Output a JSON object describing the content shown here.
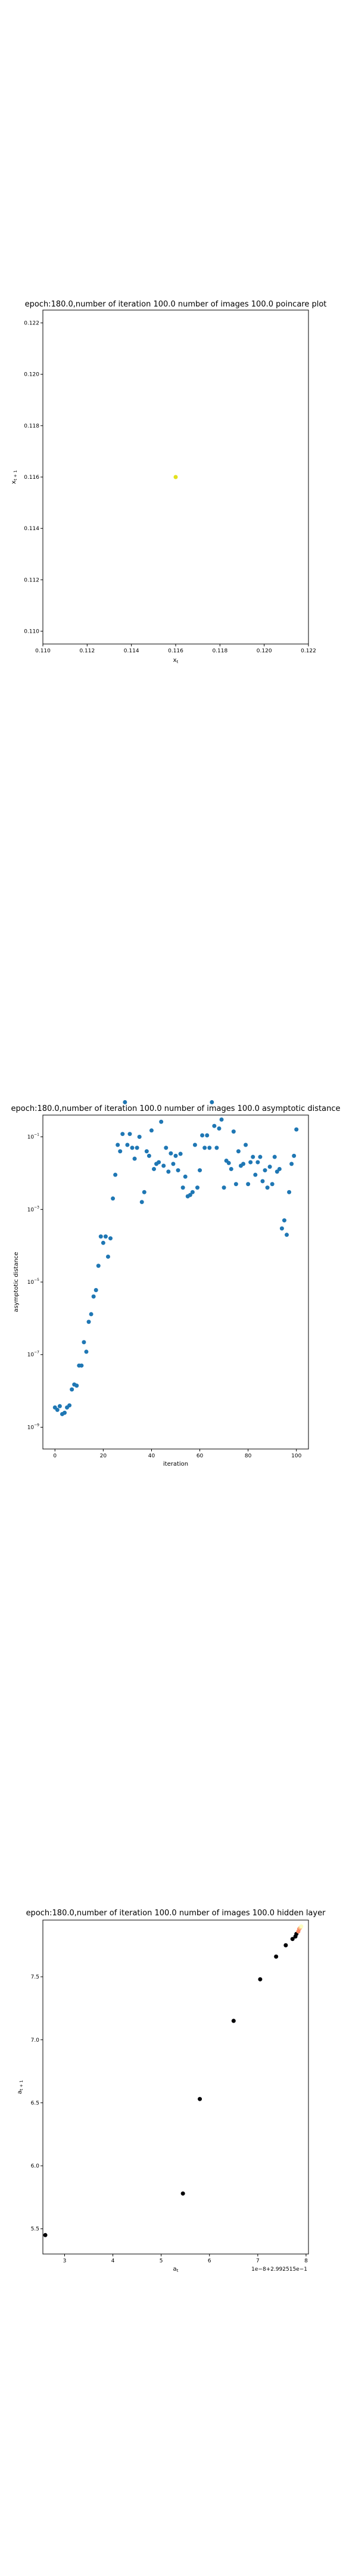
{
  "colors": {
    "poincare_point": "#e3e11d",
    "asymptotic_points": "#1f77b4",
    "hidden_layer_colormap": [
      "#000004",
      "#1c0c44",
      "#50127b",
      "#822581",
      "#b63679",
      "#e75263",
      "#fb8861",
      "#fcc48c",
      "#fcfdbf"
    ]
  },
  "chart_data": [
    {
      "type": "scatter",
      "title": "epoch:180.0,number of iteration 100.0 number of images 100.0 poincare plot",
      "xlabel": "x_t",
      "ylabel": "x_{t+1}",
      "xlim": [
        0.11,
        0.122
      ],
      "ylim": [
        0.1095,
        0.1225
      ],
      "xticks": [
        "0.110",
        "0.112",
        "0.114",
        "0.116",
        "0.118",
        "0.120",
        "0.122"
      ],
      "yticks": [
        "0.110",
        "0.112",
        "0.114",
        "0.116",
        "0.118",
        "0.120",
        "0.122"
      ],
      "points": [
        [
          0.116,
          0.116
        ]
      ]
    },
    {
      "type": "scatter",
      "title": "epoch:180.0,number of iteration 100.0  number of images 100.0 asymptotic distance",
      "xlabel": "iteration",
      "ylabel": "asymptotic distance",
      "xlim": [
        -5,
        105
      ],
      "ylim_log10": [
        -9.6,
        -0.4
      ],
      "log_y": true,
      "xticks": [
        "0",
        "20",
        "40",
        "60",
        "80",
        "100"
      ],
      "ytick_exponents": [
        -9,
        -7,
        -5,
        -3,
        -1
      ],
      "y": [
        3.5e-09,
        3e-09,
        3.8e-09,
        2.3e-09,
        2.5e-09,
        3.5e-09,
        4e-09,
        1.1e-08,
        1.5e-08,
        1.4e-08,
        5e-08,
        5e-08,
        2.2e-07,
        1.2e-07,
        8e-07,
        1.3e-06,
        4e-06,
        6e-06,
        2.8e-05,
        0.00018,
        0.00012,
        0.00018,
        5e-05,
        0.00016,
        0.002,
        0.009,
        0.06,
        0.04,
        0.12,
        0.9,
        0.06,
        0.12,
        0.05,
        0.025,
        0.05,
        0.1,
        0.0016,
        0.003,
        0.04,
        0.03,
        0.15,
        0.013,
        0.018,
        0.02,
        0.26,
        0.016,
        0.05,
        0.011,
        0.035,
        0.018,
        0.03,
        0.012,
        0.034,
        0.004,
        0.008,
        0.0023,
        0.0025,
        0.003,
        0.06,
        0.004,
        0.012,
        0.11,
        0.05,
        0.11,
        0.05,
        0.9,
        0.2,
        0.05,
        0.17,
        0.3,
        0.004,
        0.022,
        0.019,
        0.013,
        0.14,
        0.005,
        0.04,
        0.016,
        0.018,
        0.06,
        0.005,
        0.02,
        0.028,
        0.009,
        0.02,
        0.028,
        0.006,
        0.012,
        0.004,
        0.015,
        0.005,
        0.028,
        0.011,
        0.013,
        0.0003,
        0.0005,
        0.0002,
        0.003,
        0.018,
        0.03,
        0.16
      ]
    },
    {
      "type": "scatter",
      "title": "epoch:180.0,number of iteration 100.0  number of images 100.0 hidden layer",
      "xlabel": "a_t",
      "ylabel": "a_{t+1}",
      "x_offset_text": "1e−8+2.992515e−1",
      "xlim": [
        2.55,
        8.05
      ],
      "ylim": [
        5.3,
        7.95
      ],
      "xticks": [
        3,
        4,
        5,
        6,
        7,
        8
      ],
      "yticks": [
        "5.5",
        "6.0",
        "6.5",
        "7.0",
        "7.5"
      ],
      "x": [
        2.6,
        5.45,
        5.8,
        6.5,
        7.05,
        7.38,
        7.58,
        7.72,
        7.78,
        7.8,
        7.84,
        7.86,
        7.88,
        7.9
      ],
      "y": [
        5.45,
        5.78,
        6.53,
        7.15,
        7.48,
        7.66,
        7.75,
        7.8,
        7.82,
        7.84,
        7.86,
        7.88,
        7.89,
        7.9
      ]
    }
  ]
}
